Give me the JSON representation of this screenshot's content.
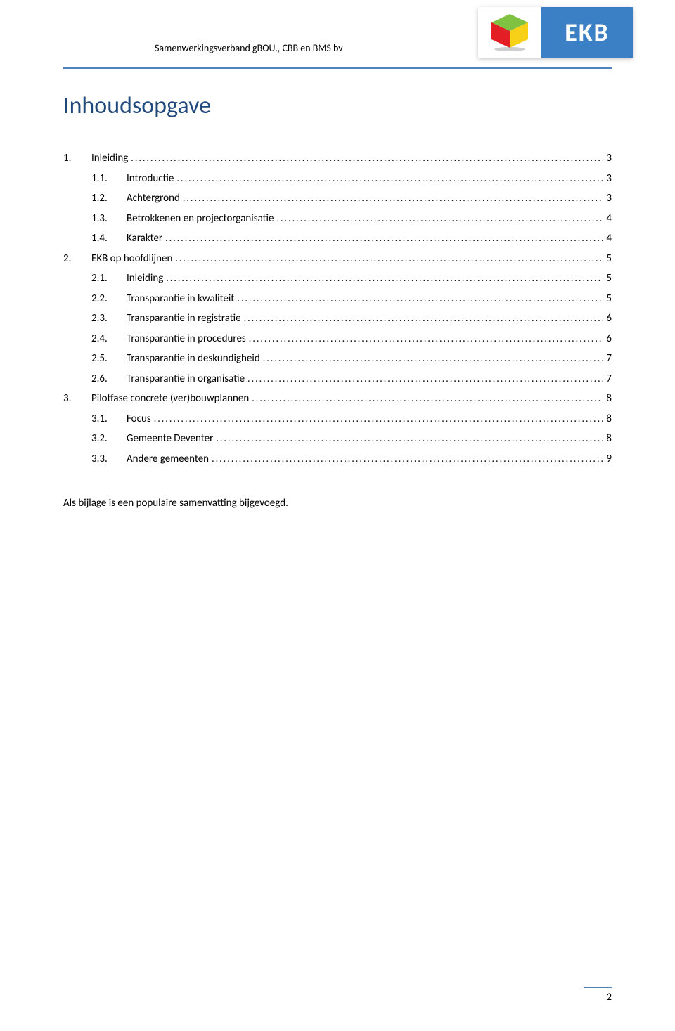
{
  "header": {
    "org_text": "Samenwerkingsverband gBOU., CBB en BMS bv",
    "logo_text": "EKB",
    "rule_color": "#4f81bd"
  },
  "title": "Inhoudsopgave",
  "title_color": "#1f497d",
  "toc": [
    {
      "level": 1,
      "num": "1.",
      "label": "Inleiding",
      "page": "3"
    },
    {
      "level": 2,
      "num": "1.1.",
      "label": "Introductie",
      "page": "3"
    },
    {
      "level": 2,
      "num": "1.2.",
      "label": "Achtergrond",
      "page": "3"
    },
    {
      "level": 2,
      "num": "1.3.",
      "label": "Betrokkenen en projectorganisatie",
      "page": "4"
    },
    {
      "level": 2,
      "num": "1.4.",
      "label": "Karakter",
      "page": "4"
    },
    {
      "level": 1,
      "num": "2.",
      "label": "EKB op hoofdlijnen",
      "page": "5"
    },
    {
      "level": 2,
      "num": "2.1.",
      "label": "Inleiding",
      "page": "5"
    },
    {
      "level": 2,
      "num": "2.2.",
      "label": "Transparantie in kwaliteit",
      "page": "5"
    },
    {
      "level": 2,
      "num": "2.3.",
      "label": "Transparantie in registratie",
      "page": "6"
    },
    {
      "level": 2,
      "num": "2.4.",
      "label": "Transparantie in procedures",
      "page": "6"
    },
    {
      "level": 2,
      "num": "2.5.",
      "label": "Transparantie in deskundigheid",
      "page": "7"
    },
    {
      "level": 2,
      "num": "2.6.",
      "label": "Transparantie in organisatie",
      "page": "7"
    },
    {
      "level": 1,
      "num": "3.",
      "label": "Pilotfase concrete (ver)bouwplannen",
      "page": "8"
    },
    {
      "level": 2,
      "num": "3.1.",
      "label": "Focus",
      "page": "8"
    },
    {
      "level": 2,
      "num": "3.2.",
      "label": "Gemeente Deventer",
      "page": "8"
    },
    {
      "level": 2,
      "num": "3.3.",
      "label": "Andere gemeenten",
      "page": "9"
    }
  ],
  "note": "Als bijlage is een populaire samenvatting bijgevoegd.",
  "page_number": "2",
  "cube_colors": {
    "top": "#7fc242",
    "left": "#e31e24",
    "right": "#f7d117",
    "shadow": "#9e9e9e"
  },
  "logo_bg": "#3b7fc4"
}
